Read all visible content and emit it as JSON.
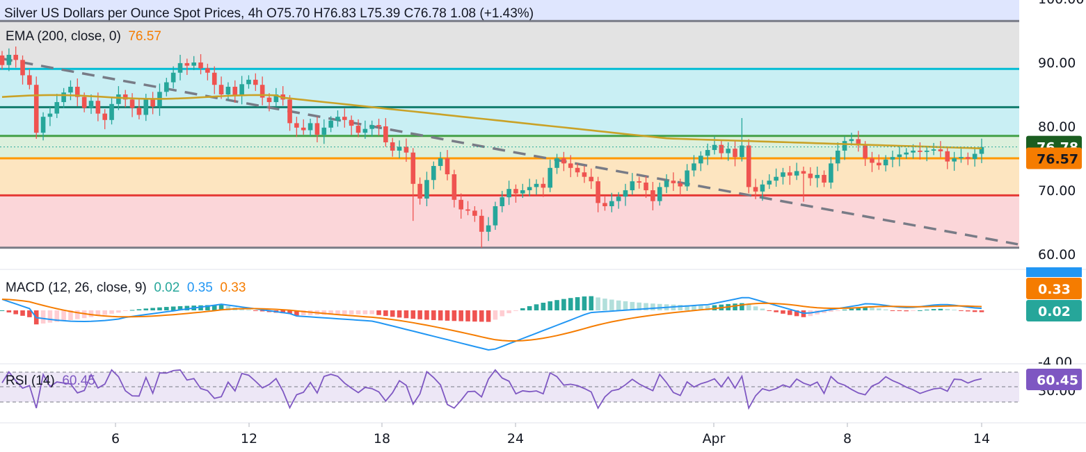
{
  "header": {
    "symbol_title": "Silver US Dollars per Ounce Spot Prices",
    "interval": "4h",
    "open_label": "O",
    "open": "75.70",
    "high_label": "H",
    "high": "76.83",
    "low_label": "L",
    "low": "75.39",
    "close_label": "C",
    "close": "76.78",
    "change": "1.08 (+1.43%)"
  },
  "ema": {
    "label": "EMA (200, close, 0)",
    "value": "76.57",
    "color": "#f57c00",
    "line_color": "#c9a227"
  },
  "macd": {
    "label": "MACD (12, 26, close, 9)",
    "hist_value": "0.02",
    "macd_value": "0.35",
    "signal_value": "0.33",
    "hist_color": "#26a69a",
    "macd_color": "#2196f3",
    "signal_color": "#f57c00"
  },
  "rsi": {
    "label": "RSI (14)",
    "value": "60.45",
    "color": "#7e57c2"
  },
  "colors": {
    "up": "#26a69a",
    "down": "#ef5350",
    "zone_top": "#e3e3e3",
    "zone_cyan": "#c9eff4",
    "zone_green": "#dcf0dc",
    "zone_orange": "#fde5c0",
    "zone_red": "#fbd6d9"
  },
  "chart_data": [
    {
      "type": "candlestick",
      "title": "Silver US Dollars per Ounce Spot Prices, 4h",
      "y_axis": {
        "ticks": [
          "60.00",
          "70.00",
          "80.00",
          "90.00",
          "100.00"
        ],
        "range": [
          59.5,
          100.5
        ]
      },
      "x_axis": {
        "ticks": [
          "6",
          "12",
          "18",
          "24",
          "Apr",
          "8",
          "14"
        ]
      },
      "horizontal_levels": [
        {
          "value": 96.5,
          "color": "#787b86"
        },
        {
          "value": 89.0,
          "color": "#00bcd4"
        },
        {
          "value": 83.0,
          "color": "#0f7b6c"
        },
        {
          "value": 78.5,
          "color": "#43a047"
        },
        {
          "value": 75.0,
          "color": "#ff9800"
        },
        {
          "value": 69.2,
          "color": "#e53935"
        },
        {
          "value": 61.0,
          "color": "#787b86"
        }
      ],
      "trendline": {
        "style": "dashed",
        "from": {
          "x": "2",
          "value": 90.0
        },
        "to": {
          "x": "14",
          "value": 61.0
        }
      },
      "last_price": {
        "label": "76.78",
        "value": 76.78
      },
      "ema_label": {
        "label": "76.57",
        "value": 76.57
      },
      "close_series": [
        89.6,
        91.2,
        90.4,
        88.0,
        86.5,
        79.0,
        81.5,
        82.0,
        83.8,
        85.3,
        86.2,
        84.6,
        82.9,
        84.0,
        82.0,
        81.0,
        83.5,
        85.0,
        84.2,
        82.9,
        81.8,
        84.4,
        83.1,
        85.4,
        86.9,
        88.4,
        89.9,
        89.5,
        90.0,
        89.1,
        88.4,
        86.5,
        85.0,
        86.2,
        84.9,
        86.6,
        87.3,
        86.5,
        84.5,
        83.8,
        85.0,
        84.2,
        80.5,
        79.8,
        79.4,
        80.5,
        78.7,
        79.8,
        80.9,
        81.5,
        81.0,
        80.1,
        79.0,
        79.6,
        80.2,
        80.0,
        77.5,
        76.2,
        76.8,
        75.9,
        71.0,
        68.7,
        71.6,
        73.8,
        75.0,
        72.5,
        68.5,
        67.0,
        66.8,
        66.0,
        63.5,
        64.5,
        67.5,
        68.9,
        70.2,
        69.5,
        70.0,
        70.5,
        71.0,
        70.4,
        73.5,
        75.0,
        74.2,
        73.5,
        72.8,
        72.1,
        71.4,
        68.0,
        67.5,
        68.3,
        69.0,
        70.0,
        71.4,
        71.2,
        70.0,
        68.3,
        70.5,
        71.5,
        71.1,
        70.6,
        73.1,
        74.2,
        75.4,
        76.3,
        77.1,
        75.8,
        76.5,
        75.2,
        77.0,
        70.5,
        69.8,
        70.9,
        71.5,
        72.1,
        72.8,
        72.3,
        73.0,
        72.6,
        71.9,
        72.4,
        71.2,
        74.2,
        76.2,
        77.7,
        78.0,
        77.0,
        75.0,
        74.3,
        73.9,
        74.8,
        75.2,
        75.6,
        75.9,
        76.2,
        76.0,
        76.2,
        76.4,
        76.1,
        74.5,
        75.0,
        75.2,
        74.9,
        75.7,
        76.78
      ],
      "highs_marked": [
        {
          "index": 108,
          "value": 81.3
        }
      ],
      "lows_marked": [
        {
          "index": 70,
          "value": 61.0
        },
        {
          "index": 60,
          "value": 65.2
        },
        {
          "index": 117,
          "value": 68.2
        }
      ]
    },
    {
      "type": "macd",
      "title": "MACD (12, 26, close, 9)",
      "y_axis": {
        "ticks": [
          "-4.00"
        ]
      },
      "last_values": {
        "histogram": "0.02",
        "macd": "0.35",
        "signal": "0.33"
      }
    },
    {
      "type": "line",
      "title": "RSI (14)",
      "y_axis": {
        "ticks": [
          "30.00"
        ],
        "range": [
          30,
          70
        ]
      },
      "last_value": "60.45"
    }
  ]
}
